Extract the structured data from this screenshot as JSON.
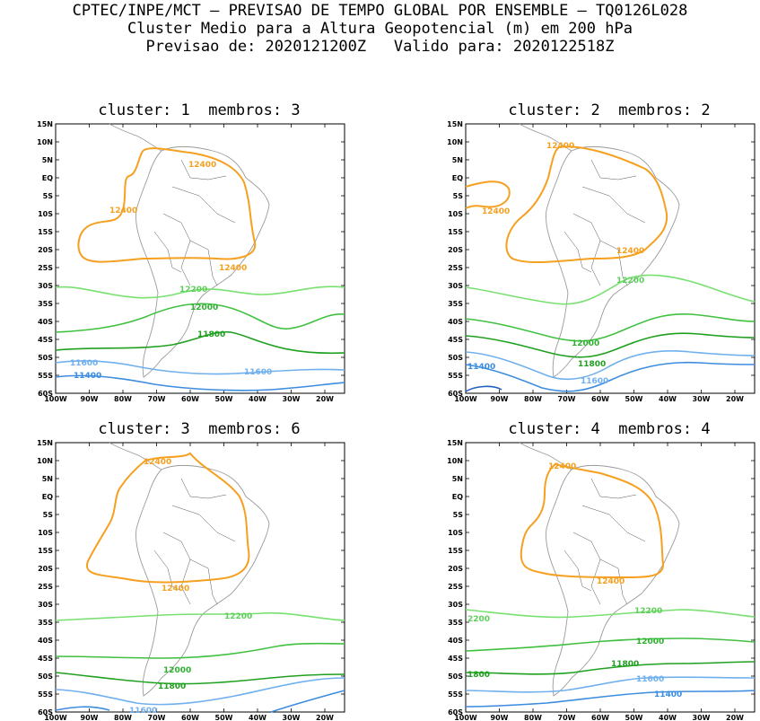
{
  "header": {
    "line1": "CPTEC/INPE/MCT – PREVISAO DE TEMPO GLOBAL POR ENSEMBLE – TQ0126L028",
    "line2": "Cluster Medio para a Altura Geopotencial (m) em 200 hPa",
    "line3": "Previsao de: 2020121200Z   Valido para: 2020122518Z"
  },
  "lat_ticks": [
    "15N",
    "10N",
    "5N",
    "EQ",
    "5S",
    "10S",
    "15S",
    "20S",
    "25S",
    "30S",
    "35S",
    "40S",
    "45S",
    "50S",
    "55S",
    "60S"
  ],
  "lon_ticks": [
    "100W",
    "90W",
    "80W",
    "70W",
    "60W",
    "50W",
    "40W",
    "30W",
    "20W"
  ],
  "colors": {
    "c12400": "#f5a020",
    "c12200": "#78e070",
    "c12000": "#40c040",
    "c11800": "#20a020",
    "c11600": "#70b0ee",
    "c11400": "#3c8ce0",
    "coast": "#9a9a9a"
  },
  "panels": [
    {
      "title": "cluster: 1  membros: 3",
      "labels": {
        "l12400a": "12400",
        "l12400b": "12400",
        "l12400c": "12400",
        "l12200": "12200",
        "l12000": "12000",
        "l11800": "11800",
        "l11600a": "11600",
        "l11600b": "11600",
        "l11400": "11400"
      }
    },
    {
      "title": "cluster: 2  membros: 2",
      "labels": {
        "l12400a": "12400",
        "l12400b": "12400",
        "l12400c": "12400",
        "l12200": "12200",
        "l12000": "12000",
        "l11800": "11800",
        "l11600": "11600",
        "l11400": "11400"
      }
    },
    {
      "title": "cluster: 3  membros: 6",
      "labels": {
        "l12400a": "12400",
        "l12400b": "12400",
        "l12200": "12200",
        "l12000": "12000",
        "l11800": "11800",
        "l11600": "11600"
      }
    },
    {
      "title": "cluster: 4  membros: 4",
      "labels": {
        "l12400a": "12400",
        "l12400b": "12400",
        "l12200a": "12200",
        "l12200b": "2200",
        "l12000": "12000",
        "l11800a": "11800",
        "l11800b": "1800",
        "l11600": "11600",
        "l11400": "11400"
      }
    }
  ]
}
